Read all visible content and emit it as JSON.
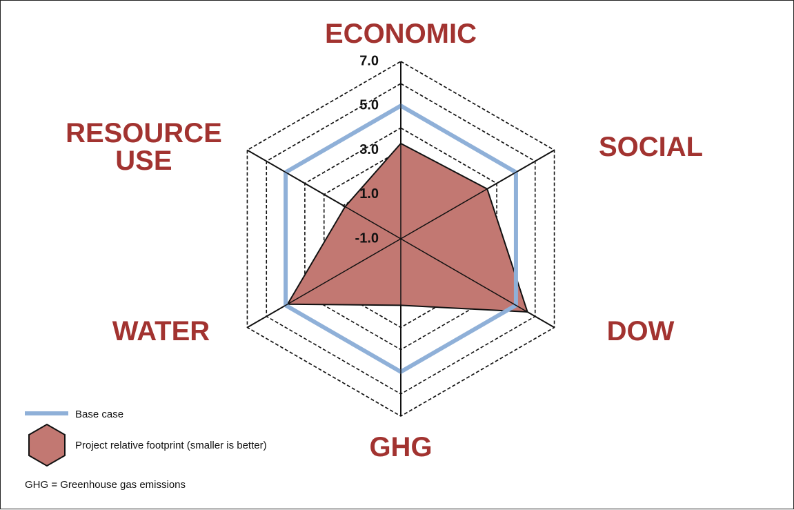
{
  "chart_data": {
    "type": "radar",
    "categories": [
      "ECONOMIC",
      "SOCIAL",
      "DOW",
      "GHG",
      "WATER",
      "RESOURCE USE"
    ],
    "series": [
      {
        "name": "Base case",
        "color": "#8fb0d8",
        "values": [
          5,
          5,
          5,
          5,
          5,
          5
        ]
      },
      {
        "name": "Project relative footprint (smaller is better)",
        "color": "#c27872",
        "values": [
          3.3,
          3.5,
          5.6,
          2.0,
          4.9,
          1.9
        ]
      }
    ],
    "rlim": [
      -1,
      7
    ],
    "rticks": [
      {
        "value": -1,
        "label": "-1.0"
      },
      {
        "value": 1,
        "label": "1.0"
      },
      {
        "value": 3,
        "label": "3.0"
      },
      {
        "value": 5,
        "label": "5.0"
      },
      {
        "value": 7,
        "label": "7.0"
      }
    ],
    "note": "GHG = Greenhouse gas emissions"
  }
}
